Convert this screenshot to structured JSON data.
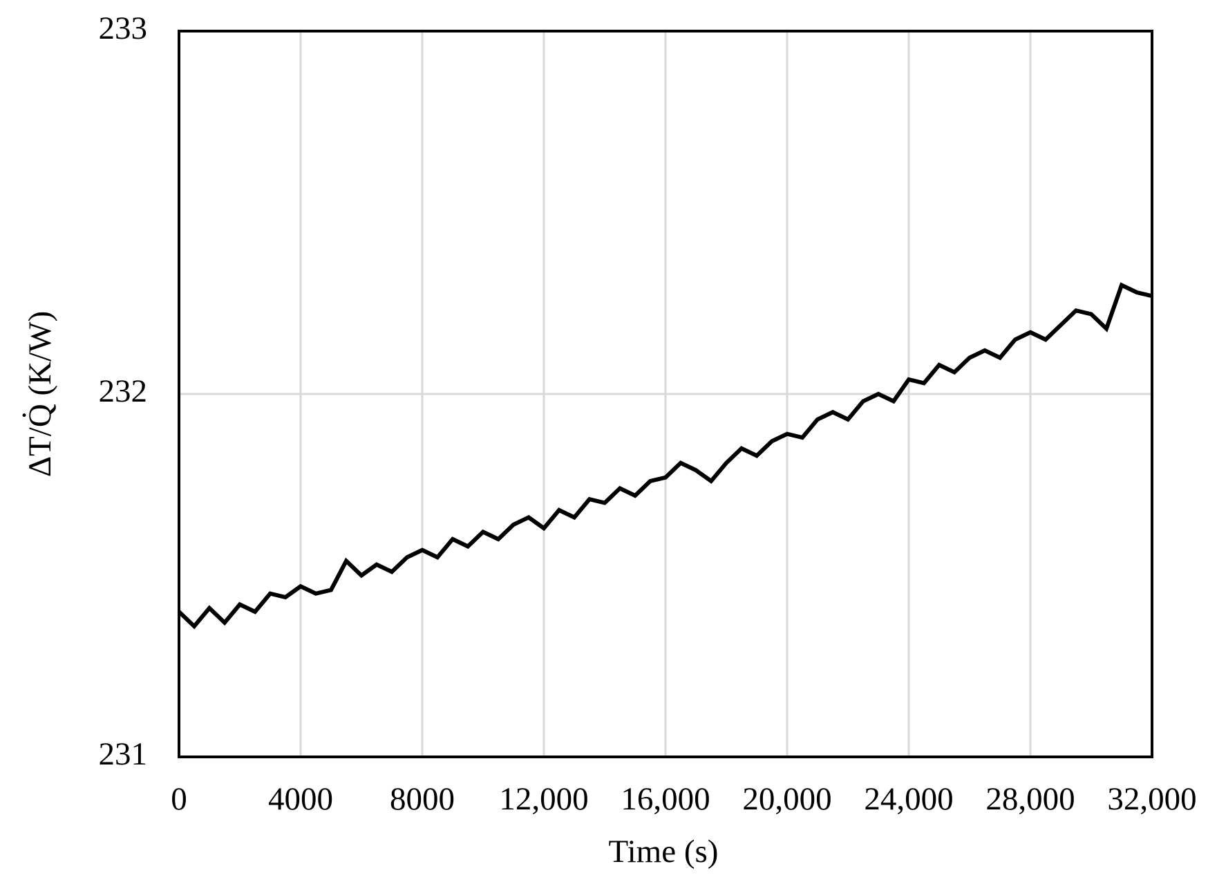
{
  "chart_data": {
    "type": "line",
    "x_label": "Time (s)",
    "y_label": "ΔT/Q̇ (K/W)",
    "x": [
      0,
      500,
      1000,
      1500,
      2000,
      2500,
      3000,
      3500,
      4000,
      4500,
      5000,
      5500,
      6000,
      6500,
      7000,
      7500,
      8000,
      8500,
      9000,
      9500,
      10000,
      10500,
      11000,
      11500,
      12000,
      12500,
      13000,
      13500,
      14000,
      14500,
      15000,
      15500,
      16000,
      16500,
      17000,
      17500,
      18000,
      18500,
      19000,
      19500,
      20000,
      20500,
      21000,
      21500,
      22000,
      22500,
      23000,
      23500,
      24000,
      24500,
      25000,
      25500,
      26000,
      26500,
      27000,
      27500,
      28000,
      28500,
      29000,
      29500,
      30000,
      30500,
      31000,
      31500,
      32000
    ],
    "series": [
      {
        "color": "#000000",
        "values": [
          231.4,
          231.36,
          231.41,
          231.37,
          231.42,
          231.4,
          231.45,
          231.44,
          231.47,
          231.45,
          231.46,
          231.54,
          231.5,
          231.53,
          231.51,
          231.55,
          231.57,
          231.55,
          231.6,
          231.58,
          231.62,
          231.6,
          231.64,
          231.66,
          231.63,
          231.68,
          231.66,
          231.71,
          231.7,
          231.74,
          231.72,
          231.76,
          231.77,
          231.81,
          231.79,
          231.76,
          231.81,
          231.85,
          231.83,
          231.87,
          231.89,
          231.88,
          231.93,
          231.95,
          231.93,
          231.98,
          232.0,
          231.98,
          232.04,
          232.03,
          232.08,
          232.06,
          232.1,
          232.12,
          232.1,
          232.15,
          232.17,
          232.15,
          232.19,
          232.23,
          232.22,
          232.18,
          232.3,
          232.28,
          232.27
        ]
      }
    ],
    "xlim": [
      0,
      32000
    ],
    "xticks": [
      0,
      4000,
      8000,
      {
        "value": 12000,
        "label": "12,000"
      },
      {
        "value": 16000,
        "label": "16,000"
      },
      {
        "value": 20000,
        "label": "20,000"
      },
      {
        "value": 24000,
        "label": "24,000"
      },
      {
        "value": 28000,
        "label": "28,000"
      },
      {
        "value": 32000,
        "label": "32,000"
      }
    ],
    "ylim": [
      231,
      233
    ],
    "yticks": [
      231,
      232,
      233
    ],
    "grid": true
  }
}
